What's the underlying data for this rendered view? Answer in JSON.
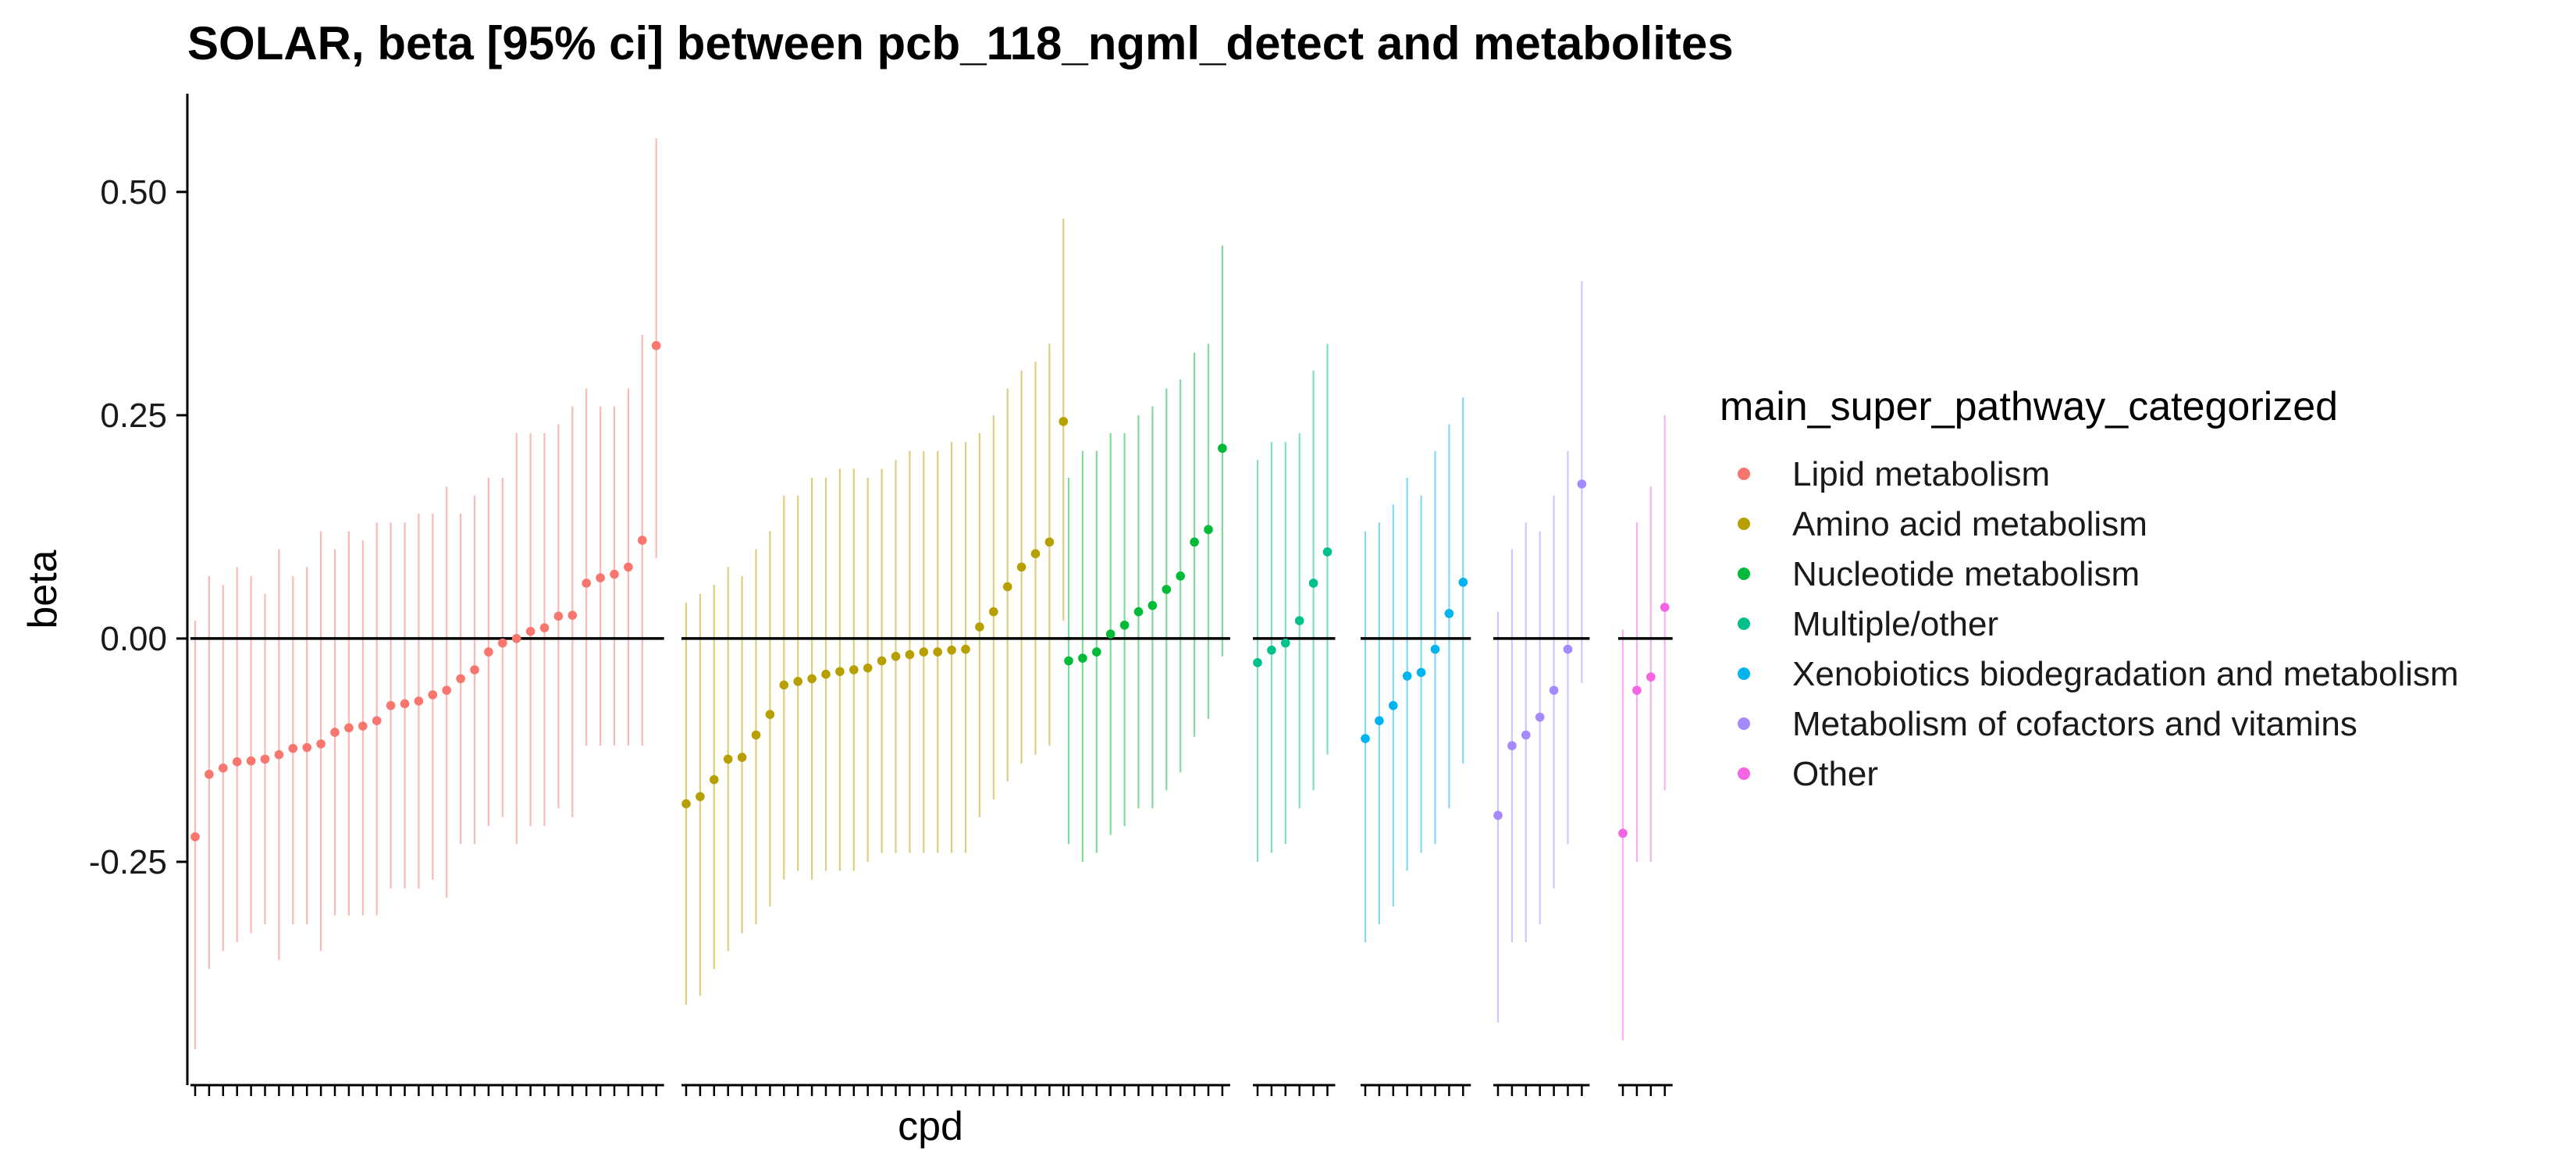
{
  "chart_data": {
    "type": "scatter",
    "title": "SOLAR, beta [95% ci] between pcb_118_ngml_detect and metabolites",
    "xlabel": "cpd",
    "ylabel": "beta",
    "ylim": [
      -0.5,
      0.61
    ],
    "yticks": [
      {
        "value": 0.5,
        "label": "0.50"
      },
      {
        "value": 0.25,
        "label": "0.25"
      },
      {
        "value": 0.0,
        "label": "0.00"
      },
      {
        "value": -0.25,
        "label": "-0.25"
      }
    ],
    "reference_line": 0,
    "grid": false,
    "legend": {
      "title": "main_super_pathway_categorized",
      "position": "right"
    },
    "series": [
      {
        "name": "Lipid metabolism",
        "color": "#F8766D",
        "points": [
          {
            "beta": -0.222,
            "lo": -0.46,
            "hi": 0.02
          },
          {
            "beta": -0.152,
            "lo": -0.37,
            "hi": 0.07
          },
          {
            "beta": -0.145,
            "lo": -0.35,
            "hi": 0.06
          },
          {
            "beta": -0.138,
            "lo": -0.34,
            "hi": 0.08
          },
          {
            "beta": -0.137,
            "lo": -0.33,
            "hi": 0.07
          },
          {
            "beta": -0.135,
            "lo": -0.32,
            "hi": 0.05
          },
          {
            "beta": -0.13,
            "lo": -0.36,
            "hi": 0.1
          },
          {
            "beta": -0.123,
            "lo": -0.32,
            "hi": 0.07
          },
          {
            "beta": -0.122,
            "lo": -0.32,
            "hi": 0.08
          },
          {
            "beta": -0.118,
            "lo": -0.35,
            "hi": 0.12
          },
          {
            "beta": -0.105,
            "lo": -0.31,
            "hi": 0.1
          },
          {
            "beta": -0.1,
            "lo": -0.31,
            "hi": 0.12
          },
          {
            "beta": -0.098,
            "lo": -0.31,
            "hi": 0.11
          },
          {
            "beta": -0.092,
            "lo": -0.31,
            "hi": 0.13
          },
          {
            "beta": -0.075,
            "lo": -0.28,
            "hi": 0.13
          },
          {
            "beta": -0.073,
            "lo": -0.28,
            "hi": 0.13
          },
          {
            "beta": -0.07,
            "lo": -0.28,
            "hi": 0.14
          },
          {
            "beta": -0.063,
            "lo": -0.27,
            "hi": 0.14
          },
          {
            "beta": -0.058,
            "lo": -0.29,
            "hi": 0.17
          },
          {
            "beta": -0.045,
            "lo": -0.23,
            "hi": 0.14
          },
          {
            "beta": -0.035,
            "lo": -0.23,
            "hi": 0.16
          },
          {
            "beta": -0.015,
            "lo": -0.21,
            "hi": 0.18
          },
          {
            "beta": -0.005,
            "lo": -0.2,
            "hi": 0.18
          },
          {
            "beta": 0.0,
            "lo": -0.23,
            "hi": 0.23
          },
          {
            "beta": 0.008,
            "lo": -0.21,
            "hi": 0.23
          },
          {
            "beta": 0.012,
            "lo": -0.21,
            "hi": 0.23
          },
          {
            "beta": 0.025,
            "lo": -0.19,
            "hi": 0.24
          },
          {
            "beta": 0.026,
            "lo": -0.2,
            "hi": 0.26
          },
          {
            "beta": 0.062,
            "lo": -0.12,
            "hi": 0.28
          },
          {
            "beta": 0.068,
            "lo": -0.12,
            "hi": 0.26
          },
          {
            "beta": 0.072,
            "lo": -0.12,
            "hi": 0.26
          },
          {
            "beta": 0.08,
            "lo": -0.12,
            "hi": 0.28
          },
          {
            "beta": 0.11,
            "lo": -0.12,
            "hi": 0.34
          },
          {
            "beta": 0.328,
            "lo": 0.09,
            "hi": 0.56
          }
        ]
      },
      {
        "name": "Amino acid metabolism",
        "color": "#B79F00",
        "points": [
          {
            "beta": -0.185,
            "lo": -0.41,
            "hi": 0.04
          },
          {
            "beta": -0.177,
            "lo": -0.4,
            "hi": 0.05
          },
          {
            "beta": -0.158,
            "lo": -0.37,
            "hi": 0.06
          },
          {
            "beta": -0.135,
            "lo": -0.35,
            "hi": 0.08
          },
          {
            "beta": -0.133,
            "lo": -0.33,
            "hi": 0.07
          },
          {
            "beta": -0.108,
            "lo": -0.32,
            "hi": 0.1
          },
          {
            "beta": -0.085,
            "lo": -0.3,
            "hi": 0.12
          },
          {
            "beta": -0.052,
            "lo": -0.27,
            "hi": 0.16
          },
          {
            "beta": -0.048,
            "lo": -0.26,
            "hi": 0.16
          },
          {
            "beta": -0.045,
            "lo": -0.27,
            "hi": 0.18
          },
          {
            "beta": -0.04,
            "lo": -0.26,
            "hi": 0.18
          },
          {
            "beta": -0.037,
            "lo": -0.26,
            "hi": 0.19
          },
          {
            "beta": -0.035,
            "lo": -0.26,
            "hi": 0.19
          },
          {
            "beta": -0.033,
            "lo": -0.25,
            "hi": 0.18
          },
          {
            "beta": -0.025,
            "lo": -0.24,
            "hi": 0.19
          },
          {
            "beta": -0.02,
            "lo": -0.24,
            "hi": 0.2
          },
          {
            "beta": -0.018,
            "lo": -0.24,
            "hi": 0.21
          },
          {
            "beta": -0.015,
            "lo": -0.24,
            "hi": 0.21
          },
          {
            "beta": -0.015,
            "lo": -0.24,
            "hi": 0.21
          },
          {
            "beta": -0.013,
            "lo": -0.24,
            "hi": 0.22
          },
          {
            "beta": -0.012,
            "lo": -0.24,
            "hi": 0.22
          },
          {
            "beta": 0.013,
            "lo": -0.2,
            "hi": 0.23
          },
          {
            "beta": 0.03,
            "lo": -0.18,
            "hi": 0.25
          },
          {
            "beta": 0.058,
            "lo": -0.16,
            "hi": 0.28
          },
          {
            "beta": 0.08,
            "lo": -0.14,
            "hi": 0.3
          },
          {
            "beta": 0.095,
            "lo": -0.13,
            "hi": 0.31
          },
          {
            "beta": 0.108,
            "lo": -0.12,
            "hi": 0.33
          },
          {
            "beta": 0.243,
            "lo": 0.02,
            "hi": 0.47
          }
        ]
      },
      {
        "name": "Nucleotide metabolism",
        "color": "#00BA38",
        "points": [
          {
            "beta": -0.025,
            "lo": -0.23,
            "hi": 0.18
          },
          {
            "beta": -0.022,
            "lo": -0.25,
            "hi": 0.21
          },
          {
            "beta": -0.015,
            "lo": -0.24,
            "hi": 0.21
          },
          {
            "beta": 0.005,
            "lo": -0.22,
            "hi": 0.23
          },
          {
            "beta": 0.015,
            "lo": -0.21,
            "hi": 0.23
          },
          {
            "beta": 0.03,
            "lo": -0.19,
            "hi": 0.25
          },
          {
            "beta": 0.037,
            "lo": -0.19,
            "hi": 0.26
          },
          {
            "beta": 0.055,
            "lo": -0.17,
            "hi": 0.28
          },
          {
            "beta": 0.07,
            "lo": -0.15,
            "hi": 0.29
          },
          {
            "beta": 0.108,
            "lo": -0.11,
            "hi": 0.32
          },
          {
            "beta": 0.122,
            "lo": -0.09,
            "hi": 0.33
          },
          {
            "beta": 0.213,
            "lo": -0.02,
            "hi": 0.44
          }
        ]
      },
      {
        "name": "Multiple/other",
        "color": "#00C08B",
        "points": [
          {
            "beta": -0.027,
            "lo": -0.25,
            "hi": 0.2
          },
          {
            "beta": -0.013,
            "lo": -0.24,
            "hi": 0.22
          },
          {
            "beta": -0.005,
            "lo": -0.23,
            "hi": 0.22
          },
          {
            "beta": 0.02,
            "lo": -0.19,
            "hi": 0.23
          },
          {
            "beta": 0.062,
            "lo": -0.17,
            "hi": 0.3
          },
          {
            "beta": 0.097,
            "lo": -0.13,
            "hi": 0.33
          }
        ]
      },
      {
        "name": "Xenobiotics biodegradation and metabolism",
        "color": "#00B4EF",
        "points": [
          {
            "beta": -0.112,
            "lo": -0.34,
            "hi": 0.12
          },
          {
            "beta": -0.092,
            "lo": -0.32,
            "hi": 0.13
          },
          {
            "beta": -0.075,
            "lo": -0.3,
            "hi": 0.15
          },
          {
            "beta": -0.042,
            "lo": -0.26,
            "hi": 0.18
          },
          {
            "beta": -0.038,
            "lo": -0.24,
            "hi": 0.16
          },
          {
            "beta": -0.012,
            "lo": -0.23,
            "hi": 0.21
          },
          {
            "beta": 0.028,
            "lo": -0.19,
            "hi": 0.24
          },
          {
            "beta": 0.063,
            "lo": -0.14,
            "hi": 0.27
          }
        ]
      },
      {
        "name": "Metabolism of cofactors and vitamins",
        "color": "#A58AFF",
        "points": [
          {
            "beta": -0.198,
            "lo": -0.43,
            "hi": 0.03
          },
          {
            "beta": -0.12,
            "lo": -0.34,
            "hi": 0.1
          },
          {
            "beta": -0.108,
            "lo": -0.34,
            "hi": 0.13
          },
          {
            "beta": -0.088,
            "lo": -0.32,
            "hi": 0.12
          },
          {
            "beta": -0.058,
            "lo": -0.28,
            "hi": 0.16
          },
          {
            "beta": -0.012,
            "lo": -0.23,
            "hi": 0.21
          },
          {
            "beta": 0.173,
            "lo": -0.05,
            "hi": 0.4
          }
        ]
      },
      {
        "name": "Other",
        "color": "#F564E3",
        "points": [
          {
            "beta": -0.218,
            "lo": -0.45,
            "hi": 0.01
          },
          {
            "beta": -0.058,
            "lo": -0.25,
            "hi": 0.13
          },
          {
            "beta": -0.043,
            "lo": -0.25,
            "hi": 0.17
          },
          {
            "beta": 0.035,
            "lo": -0.17,
            "hi": 0.25
          }
        ]
      }
    ]
  }
}
